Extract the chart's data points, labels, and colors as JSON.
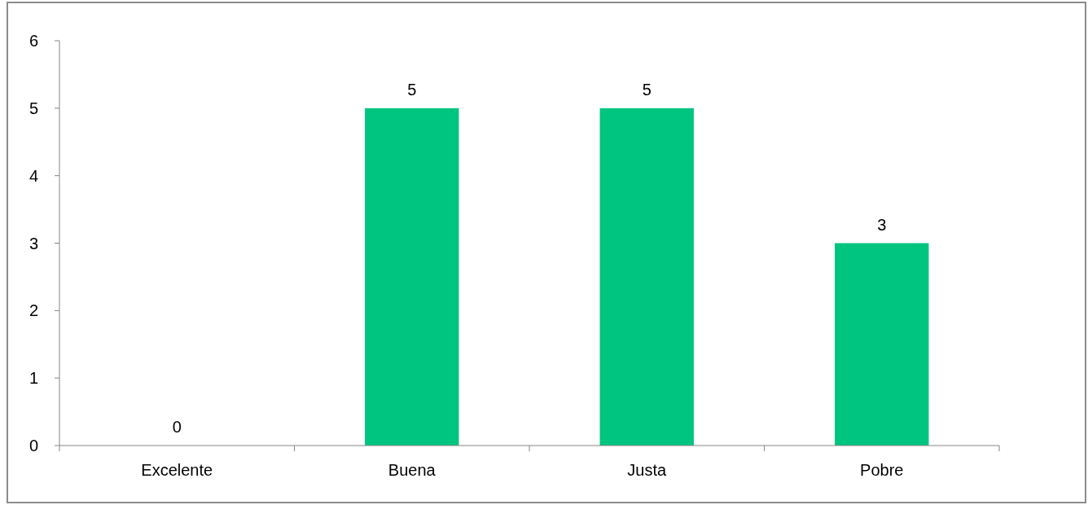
{
  "chart_data": {
    "type": "bar",
    "categories": [
      "Excelente",
      "Buena",
      "Justa",
      "Pobre"
    ],
    "values": [
      0,
      5,
      5,
      3
    ],
    "color": "#00c580",
    "ylim": [
      0,
      6
    ],
    "yticks": [
      0,
      1,
      2,
      3,
      4,
      5,
      6
    ],
    "grid": false,
    "data_labels": true
  }
}
